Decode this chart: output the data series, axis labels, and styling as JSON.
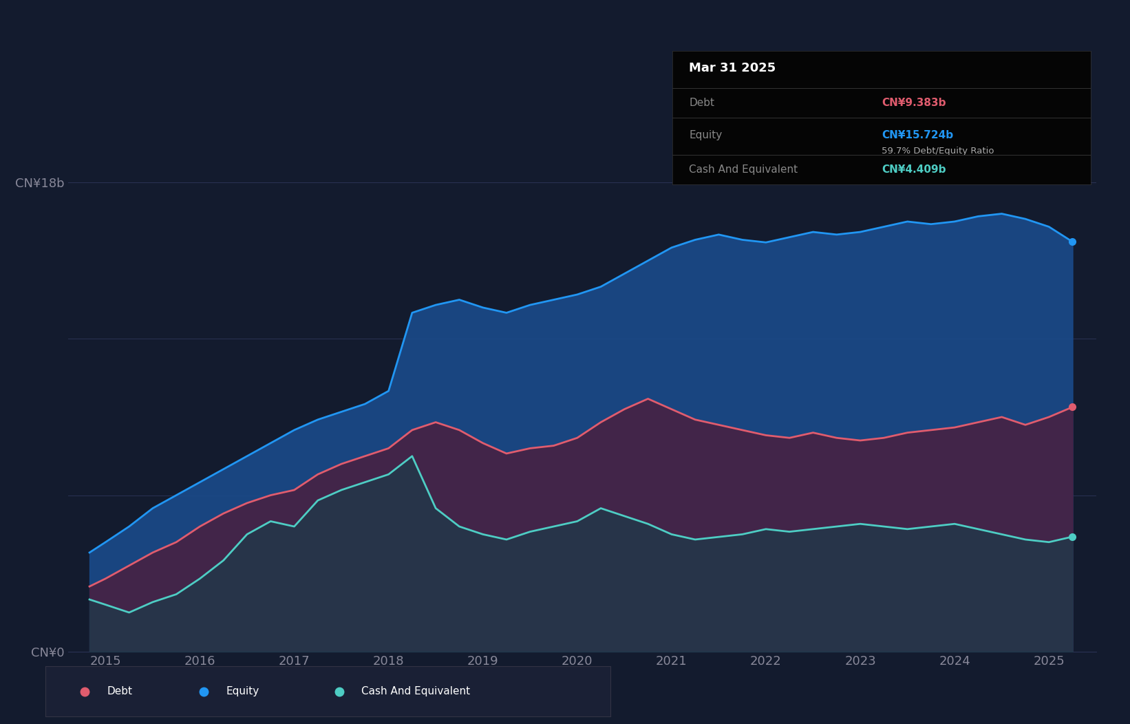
{
  "bg_color": "#131b2e",
  "plot_bg_color": "#131b2e",
  "chart_area_color": "#1a2340",
  "grid_color": "#2a3255",
  "tick_color": "#888899",
  "ylabel_18b": "CN¥18b",
  "ylabel_0": "CN¥0",
  "years": [
    2014.83,
    2015.0,
    2015.25,
    2015.5,
    2015.75,
    2016.0,
    2016.25,
    2016.5,
    2016.75,
    2017.0,
    2017.25,
    2017.5,
    2017.75,
    2018.0,
    2018.25,
    2018.5,
    2018.75,
    2019.0,
    2019.25,
    2019.5,
    2019.75,
    2020.0,
    2020.25,
    2020.5,
    2020.75,
    2021.0,
    2021.25,
    2021.5,
    2021.75,
    2022.0,
    2022.25,
    2022.5,
    2022.75,
    2023.0,
    2023.25,
    2023.5,
    2023.75,
    2024.0,
    2024.25,
    2024.5,
    2024.75,
    2025.0,
    2025.25
  ],
  "equity": [
    3.8,
    4.2,
    4.8,
    5.5,
    6.0,
    6.5,
    7.0,
    7.5,
    8.0,
    8.5,
    8.9,
    9.2,
    9.5,
    10.0,
    13.0,
    13.3,
    13.5,
    13.2,
    13.0,
    13.3,
    13.5,
    13.7,
    14.0,
    14.5,
    15.0,
    15.5,
    15.8,
    16.0,
    15.8,
    15.7,
    15.9,
    16.1,
    16.0,
    16.1,
    16.3,
    16.5,
    16.4,
    16.5,
    16.7,
    16.8,
    16.6,
    16.3,
    15.724
  ],
  "debt": [
    2.5,
    2.8,
    3.3,
    3.8,
    4.2,
    4.8,
    5.3,
    5.7,
    6.0,
    6.2,
    6.8,
    7.2,
    7.5,
    7.8,
    8.5,
    8.8,
    8.5,
    8.0,
    7.6,
    7.8,
    7.9,
    8.2,
    8.8,
    9.3,
    9.7,
    9.3,
    8.9,
    8.7,
    8.5,
    8.3,
    8.2,
    8.4,
    8.2,
    8.1,
    8.2,
    8.4,
    8.5,
    8.6,
    8.8,
    9.0,
    8.7,
    9.0,
    9.383
  ],
  "cash": [
    2.0,
    1.8,
    1.5,
    1.9,
    2.2,
    2.8,
    3.5,
    4.5,
    5.0,
    4.8,
    5.8,
    6.2,
    6.5,
    6.8,
    7.5,
    5.5,
    4.8,
    4.5,
    4.3,
    4.6,
    4.8,
    5.0,
    5.5,
    5.2,
    4.9,
    4.5,
    4.3,
    4.4,
    4.5,
    4.7,
    4.6,
    4.7,
    4.8,
    4.9,
    4.8,
    4.7,
    4.8,
    4.9,
    4.7,
    4.5,
    4.3,
    4.2,
    4.409
  ],
  "equity_color": "#2196f3",
  "debt_color": "#e05c6e",
  "cash_color": "#4ecdc4",
  "equity_fill_color": "#1a4a8a",
  "debt_fill_color": "#4a2040",
  "cash_fill_color": "#1e3a4a",
  "xticks": [
    2015,
    2016,
    2017,
    2018,
    2019,
    2020,
    2021,
    2022,
    2023,
    2024,
    2025
  ],
  "xlim": [
    2014.6,
    2025.5
  ],
  "ylim": [
    0,
    20
  ],
  "y18_line": 18,
  "tooltip_title": "Mar 31 2025",
  "tooltip_debt_label": "Debt",
  "tooltip_debt_value": "CN¥9.383b",
  "tooltip_equity_label": "Equity",
  "tooltip_equity_value": "CN¥15.724b",
  "tooltip_ratio": "59.7% Debt/Equity Ratio",
  "tooltip_ratio_pct": "59.7%",
  "tooltip_cash_label": "Cash And Equivalent",
  "tooltip_cash_value": "CN¥4.409b",
  "legend_items": [
    "Debt",
    "Equity",
    "Cash And Equivalent"
  ],
  "legend_colors": [
    "#e05c6e",
    "#2196f3",
    "#4ecdc4"
  ]
}
